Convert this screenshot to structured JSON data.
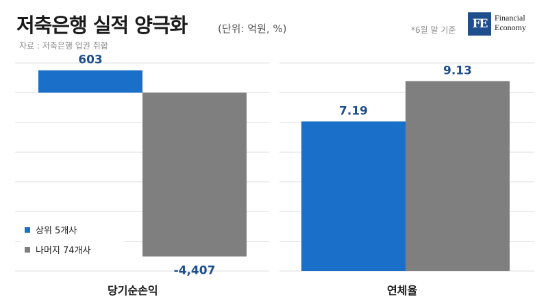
{
  "header": {
    "title": "저축은행 실적 양극화",
    "unit": "(단위: 억원, %)",
    "source": "자료 : 저축은행 업권 취합",
    "note": "*6월 말 기준",
    "logo_mark": "FE",
    "logo_line1": "Financial",
    "logo_line2": "Economy"
  },
  "colors": {
    "top5": "#1a6fc9",
    "rest74": "#7f7f7f",
    "label_blue": "#1f4e8c",
    "grid": "#dddddd"
  },
  "legend": {
    "items": [
      {
        "label": "상위 5개사",
        "color": "#1a6fc9"
      },
      {
        "label": "나머지 74개사",
        "color": "#7f7f7f"
      }
    ]
  },
  "chart_data": [
    {
      "type": "bar",
      "categories": [
        "당기순손익"
      ],
      "series": [
        {
          "name": "상위 5개사",
          "values": [
            603
          ],
          "labels": [
            "603"
          ]
        },
        {
          "name": "나머지 74개사",
          "values": [
            -4407
          ],
          "labels": [
            "-4,407"
          ]
        }
      ],
      "xlabel": "당기순손익",
      "ylim": [
        -4800,
        800
      ],
      "grid": true
    },
    {
      "type": "bar",
      "categories": [
        "연체율"
      ],
      "series": [
        {
          "name": "상위 5개사",
          "values": [
            7.19
          ],
          "labels": [
            "7.19"
          ]
        },
        {
          "name": "나머지 74개사",
          "values": [
            9.13
          ],
          "labels": [
            "9.13"
          ]
        }
      ],
      "xlabel": "연체율",
      "ylim": [
        0,
        10
      ],
      "grid": true
    }
  ]
}
